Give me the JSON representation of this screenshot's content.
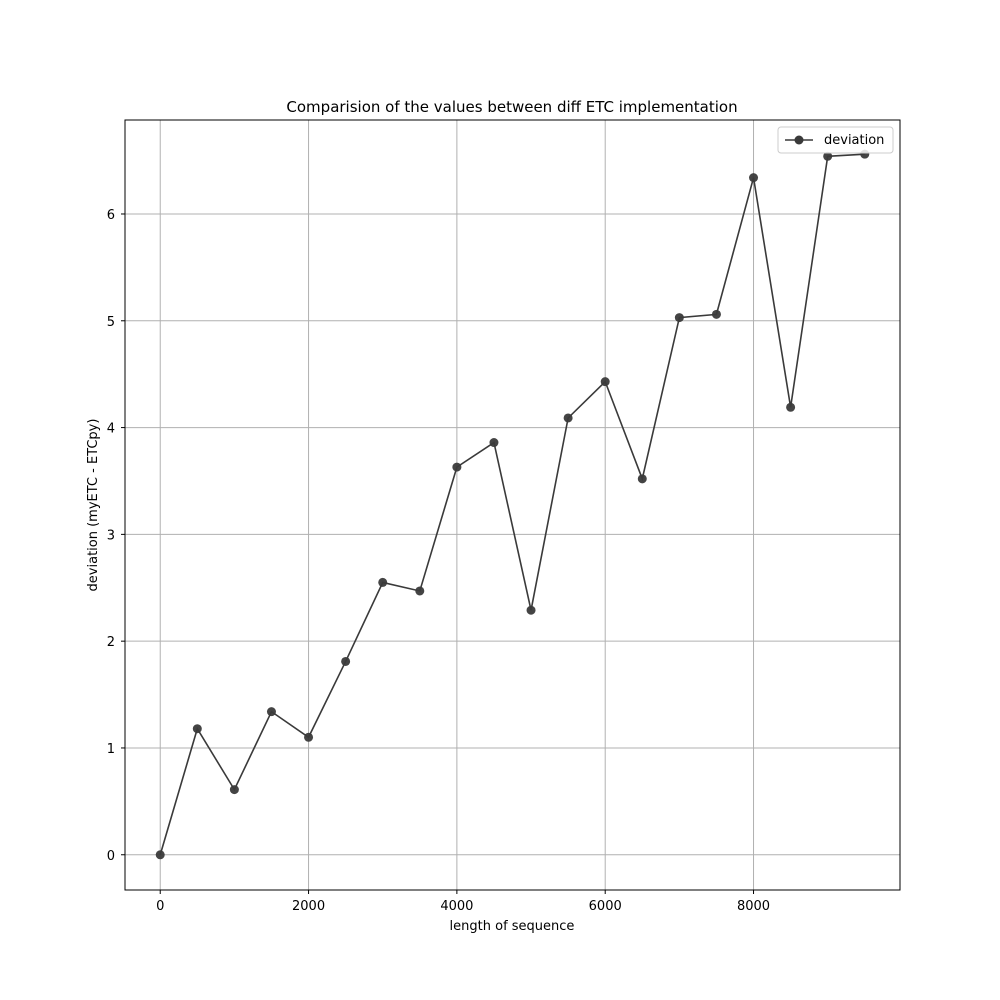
{
  "chart_data": {
    "type": "line",
    "title": "Comparision of the values between diff ETC implementation",
    "xlabel": "length of sequence",
    "ylabel": "deviation (myETC - ETCpy)",
    "xlim": [
      -475,
      9975
    ],
    "ylim": [
      -0.33,
      6.88
    ],
    "xticks": [
      0,
      2000,
      4000,
      6000,
      8000
    ],
    "yticks": [
      0,
      1,
      2,
      3,
      4,
      5,
      6
    ],
    "grid": true,
    "legend_position": "top-right",
    "series": [
      {
        "name": "deviation",
        "color": "#3a3a3a",
        "marker": "circle",
        "x": [
          0,
          500,
          1000,
          1500,
          2000,
          2500,
          3000,
          3500,
          4000,
          4500,
          5000,
          5500,
          6000,
          6500,
          7000,
          7500,
          8000,
          8500,
          9000,
          9500
        ],
        "y": [
          0.0,
          1.18,
          0.61,
          1.34,
          1.1,
          1.81,
          2.55,
          2.47,
          3.63,
          3.86,
          2.29,
          4.09,
          4.43,
          3.52,
          5.03,
          5.06,
          6.34,
          4.19,
          6.54,
          6.56
        ]
      }
    ]
  }
}
